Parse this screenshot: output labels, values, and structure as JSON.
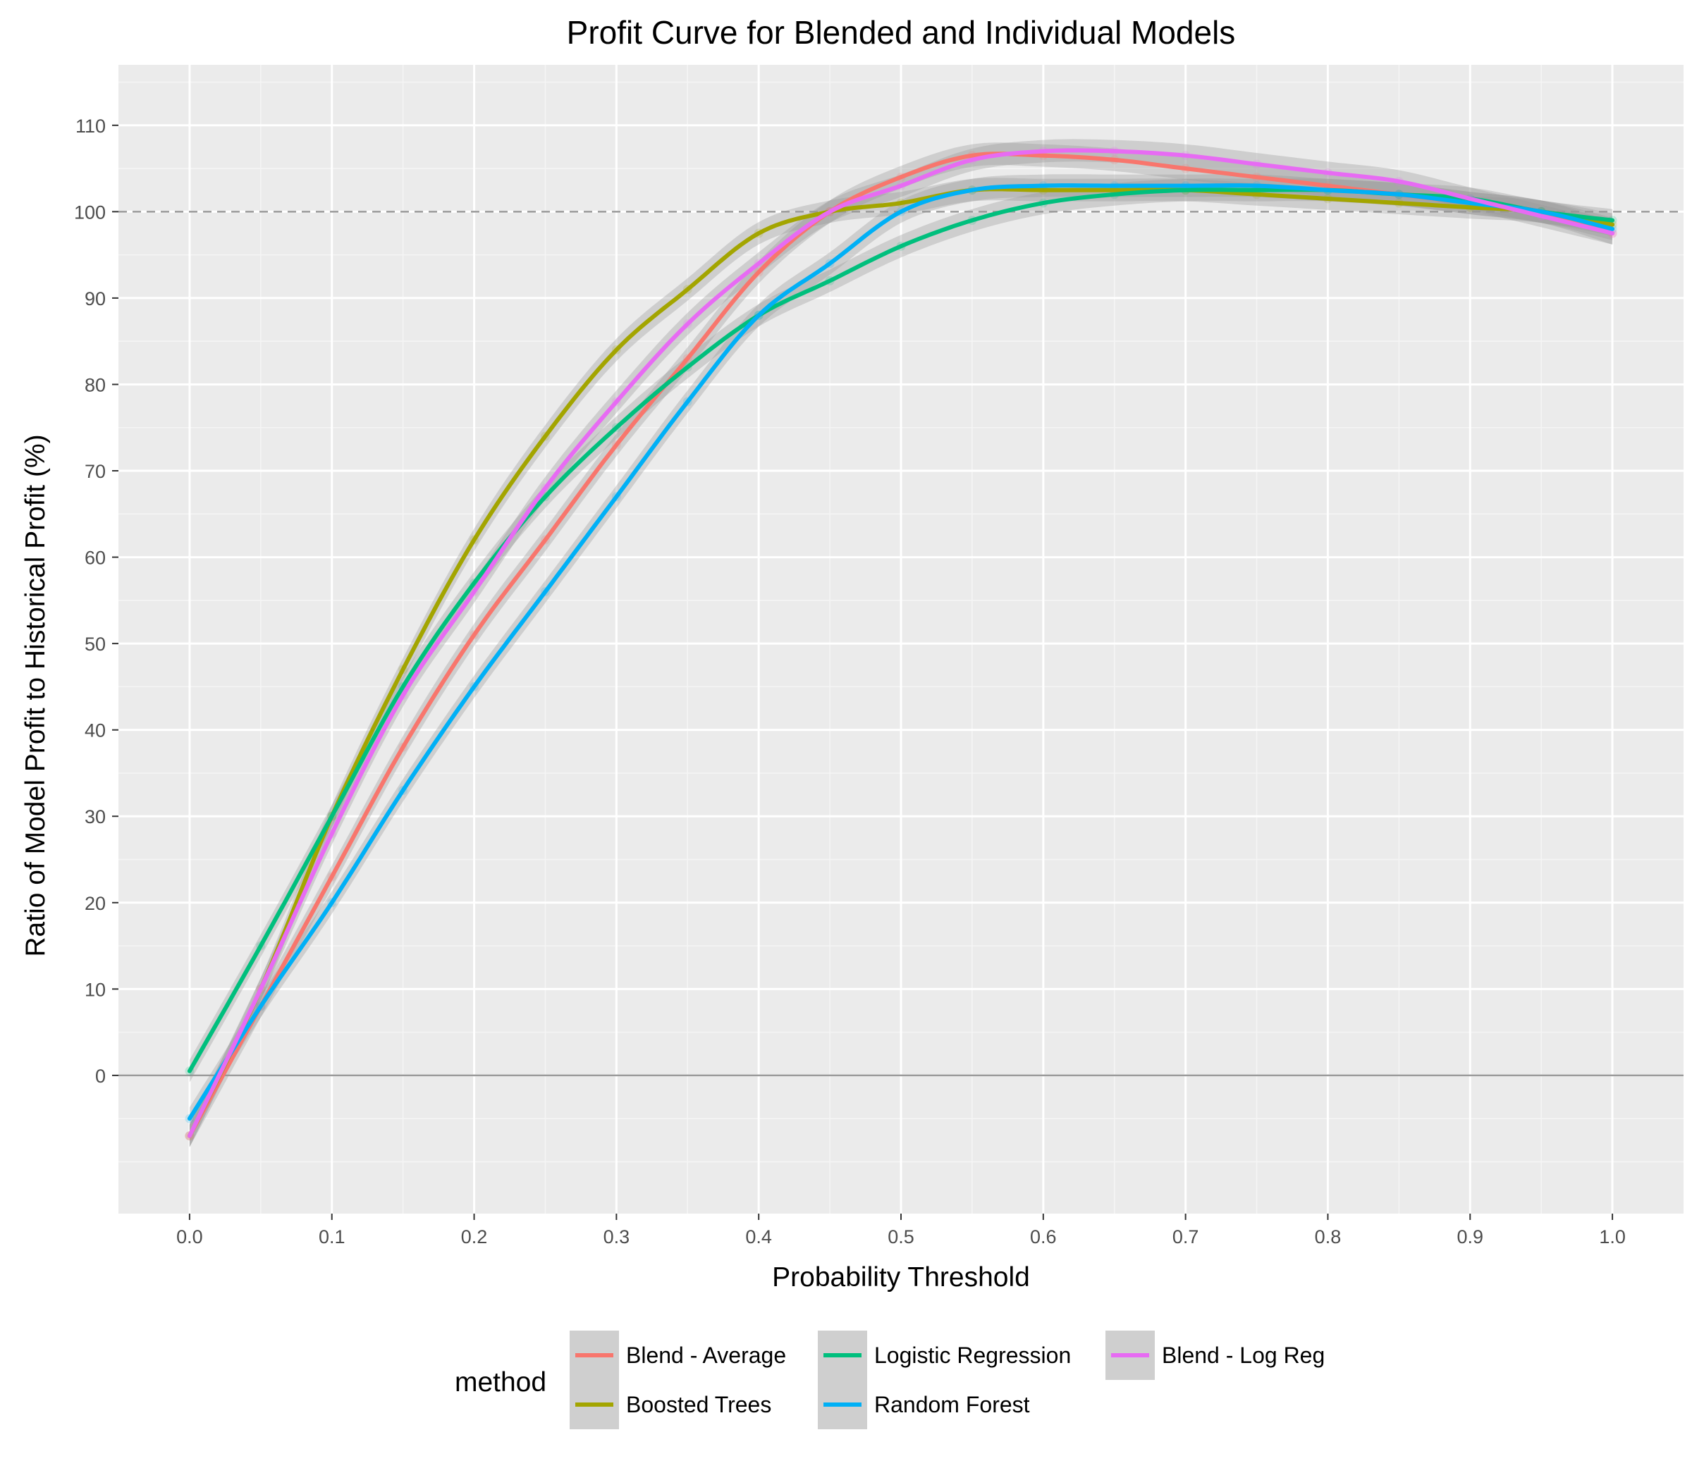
{
  "chart_data": {
    "type": "line",
    "title": "Profit Curve for Blended and Individual Models",
    "xlabel": "Probability Threshold",
    "ylabel": "Ratio of Model Profit to Historical Profit (%)",
    "xlim": [
      -0.05,
      1.05
    ],
    "ylim": [
      -16,
      117
    ],
    "x_ticks": [
      0.0,
      0.1,
      0.2,
      0.3,
      0.4,
      0.5,
      0.6,
      0.7,
      0.8,
      0.9,
      1.0
    ],
    "x_tick_labels": [
      "0.0",
      "0.1",
      "0.2",
      "0.3",
      "0.4",
      "0.5",
      "0.6",
      "0.7",
      "0.8",
      "0.9",
      "1.0"
    ],
    "y_ticks": [
      0,
      10,
      20,
      30,
      40,
      50,
      60,
      70,
      80,
      90,
      100,
      110
    ],
    "y_tick_labels": [
      "0",
      "10",
      "20",
      "30",
      "40",
      "50",
      "60",
      "70",
      "80",
      "90",
      "100",
      "110"
    ],
    "reference_lines": [
      {
        "y": 100,
        "style": "dashed",
        "color": "#9a9a9a"
      },
      {
        "y": 0,
        "style": "solid",
        "color": "#9a9a9a"
      }
    ],
    "grid": true,
    "legend": {
      "title": "method",
      "position": "bottom"
    },
    "x": [
      0.0,
      0.05,
      0.1,
      0.15,
      0.2,
      0.25,
      0.3,
      0.35,
      0.4,
      0.45,
      0.5,
      0.55,
      0.6,
      0.65,
      0.7,
      0.75,
      0.8,
      0.85,
      0.9,
      0.95,
      1.0
    ],
    "series": [
      {
        "name": "Blend - Average",
        "color": "#F8766D",
        "values": [
          -7,
          8,
          23,
          38,
          51,
          62,
          73,
          83,
          93,
          100,
          104,
          106.5,
          106.5,
          106,
          105,
          104,
          103,
          102,
          101,
          100,
          97.5
        ]
      },
      {
        "name": "Boosted Trees",
        "color": "#A3A500",
        "values": [
          -7,
          10,
          30,
          47,
          62,
          74,
          84,
          91,
          97.5,
          100,
          101,
          102.5,
          102.5,
          102.5,
          102.5,
          102,
          101.5,
          101,
          100.5,
          100,
          98.5
        ]
      },
      {
        "name": "Logistic Regression",
        "color": "#00BF7D",
        "values": [
          0.5,
          15,
          30,
          45,
          57,
          67,
          75,
          82,
          88,
          92,
          96,
          99,
          101,
          102,
          102.5,
          102.5,
          102.5,
          102,
          101.5,
          100,
          99
        ]
      },
      {
        "name": "Random Forest",
        "color": "#00B0F6",
        "values": [
          -5,
          8,
          20,
          33,
          45,
          56,
          67,
          78,
          88,
          94,
          100,
          102.5,
          103,
          103,
          103,
          103,
          102.5,
          102,
          101,
          100,
          98
        ]
      },
      {
        "name": "Blend - Log Reg",
        "color": "#E76BF3",
        "values": [
          -7,
          10,
          28,
          44,
          56,
          68,
          78,
          87,
          94,
          100,
          103,
          106,
          107,
          107,
          106.5,
          105.5,
          104.5,
          103.5,
          101.5,
          99.5,
          97.5
        ]
      }
    ]
  }
}
